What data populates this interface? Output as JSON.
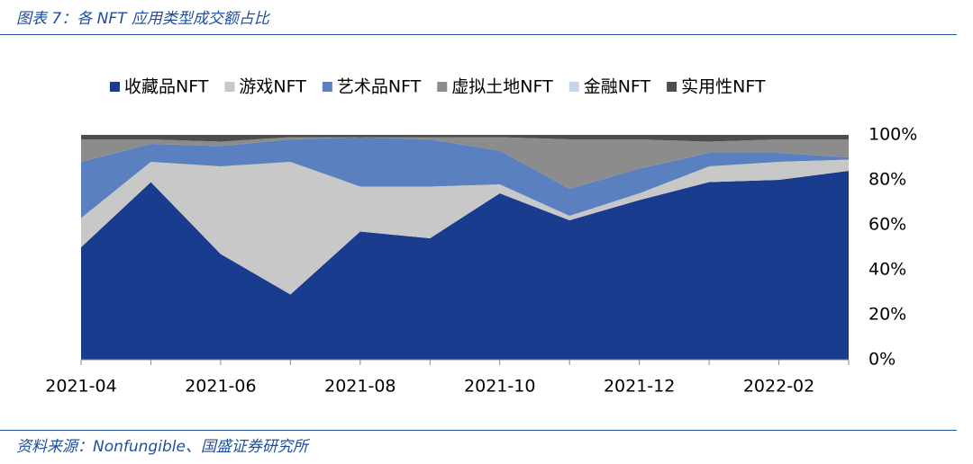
{
  "chart_data": {
    "type": "stacked-area",
    "title": "图表 7：各 NFT 应用类型成交额占比",
    "source": "资料来源：Nonfungible、国盛证券研究所",
    "categories": [
      "2021-04",
      null,
      "2021-06",
      null,
      "2021-08",
      null,
      "2021-10",
      null,
      "2021-12",
      null,
      "2022-02",
      null
    ],
    "series": [
      {
        "name": "收藏品NFT",
        "color": "#1a3c8f",
        "values": [
          50,
          79,
          47,
          29,
          57,
          54,
          74,
          62,
          71,
          79,
          80,
          84
        ]
      },
      {
        "name": "游戏NFT",
        "color": "#c8c8c8",
        "values": [
          13,
          9,
          39,
          59,
          20,
          23,
          4,
          2,
          3,
          7,
          8,
          5
        ]
      },
      {
        "name": "艺术品NFT",
        "color": "#5b80c0",
        "values": [
          25,
          8,
          9,
          10,
          22,
          21,
          15,
          12,
          11,
          6,
          4,
          1
        ]
      },
      {
        "name": "虚拟土地NFT",
        "color": "#8c8c8c",
        "values": [
          10,
          2,
          2,
          1,
          0,
          1,
          6,
          22,
          13,
          5,
          6,
          8
        ]
      },
      {
        "name": "金融NFT",
        "color": "#c5d5ec",
        "values": [
          0,
          0,
          0,
          0,
          0,
          0,
          0,
          0,
          0,
          0,
          0,
          0
        ]
      },
      {
        "name": "实用性NFT",
        "color": "#4d4d4d",
        "values": [
          2,
          2,
          3,
          1,
          1,
          1,
          1,
          2,
          2,
          3,
          2,
          2
        ]
      }
    ],
    "ylim": [
      0,
      100
    ],
    "yticks": [
      {
        "value": 0,
        "label": "0%"
      },
      {
        "value": 20,
        "label": "20%"
      },
      {
        "value": 40,
        "label": "40%"
      },
      {
        "value": 60,
        "label": "60%"
      },
      {
        "value": 80,
        "label": "80%"
      },
      {
        "value": 100,
        "label": "100%"
      }
    ],
    "legend": "top"
  }
}
